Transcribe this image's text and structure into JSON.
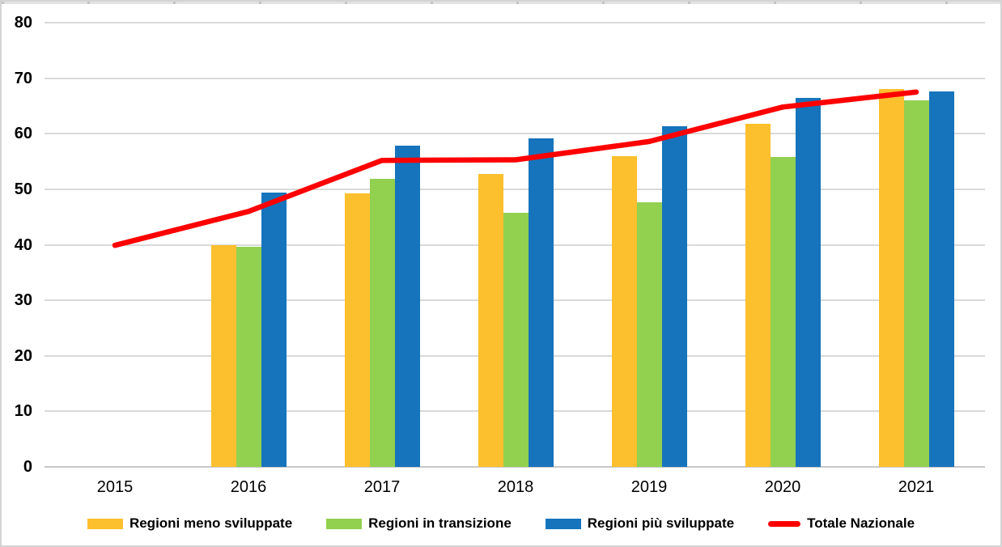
{
  "chart_data": {
    "type": "bar",
    "subtype": "grouped-bars-with-line-overlay",
    "title": "",
    "xlabel": "",
    "ylabel": "",
    "categories": [
      "2015",
      "2016",
      "2017",
      "2018",
      "2019",
      "2020",
      "2021"
    ],
    "series": [
      {
        "name": "Regioni meno sviluppate",
        "slug": "regioni-meno-sviluppate",
        "type": "bar",
        "color": "#FCBF2D",
        "values": [
          null,
          40.0,
          49.3,
          52.7,
          55.9,
          61.8,
          68.1
        ]
      },
      {
        "name": "Regioni in transizione",
        "slug": "regioni-in-transizione",
        "type": "bar",
        "color": "#92D050",
        "values": [
          null,
          39.6,
          51.9,
          45.8,
          47.7,
          55.8,
          66.0
        ]
      },
      {
        "name": "Regioni più sviluppate",
        "slug": "regioni-piu-sviluppate",
        "type": "bar",
        "color": "#1674BC",
        "values": [
          null,
          49.4,
          57.9,
          59.1,
          61.4,
          66.5,
          67.6
        ]
      },
      {
        "name": "Totale Nazionale",
        "slug": "totale-nazionale",
        "type": "line",
        "color": "#FE0000",
        "values": [
          39.9,
          46.0,
          55.2,
          55.3,
          58.6,
          64.8,
          67.5
        ]
      }
    ],
    "ylim": [
      0,
      80
    ],
    "ytick_step": 10,
    "yticks": [
      "0",
      "10",
      "20",
      "30",
      "40",
      "50",
      "60",
      "70",
      "80"
    ],
    "grid": true,
    "legend_position": "bottom"
  },
  "colors": {
    "background": "#FFFFFF",
    "outer_border": "#D4D4D4",
    "gridline": "#D9D9D9",
    "axis_line": "#C8C8C8",
    "top_strip": "#E2E2E2",
    "top_strip_tick": "#C3C3C3",
    "text": "#000000"
  }
}
